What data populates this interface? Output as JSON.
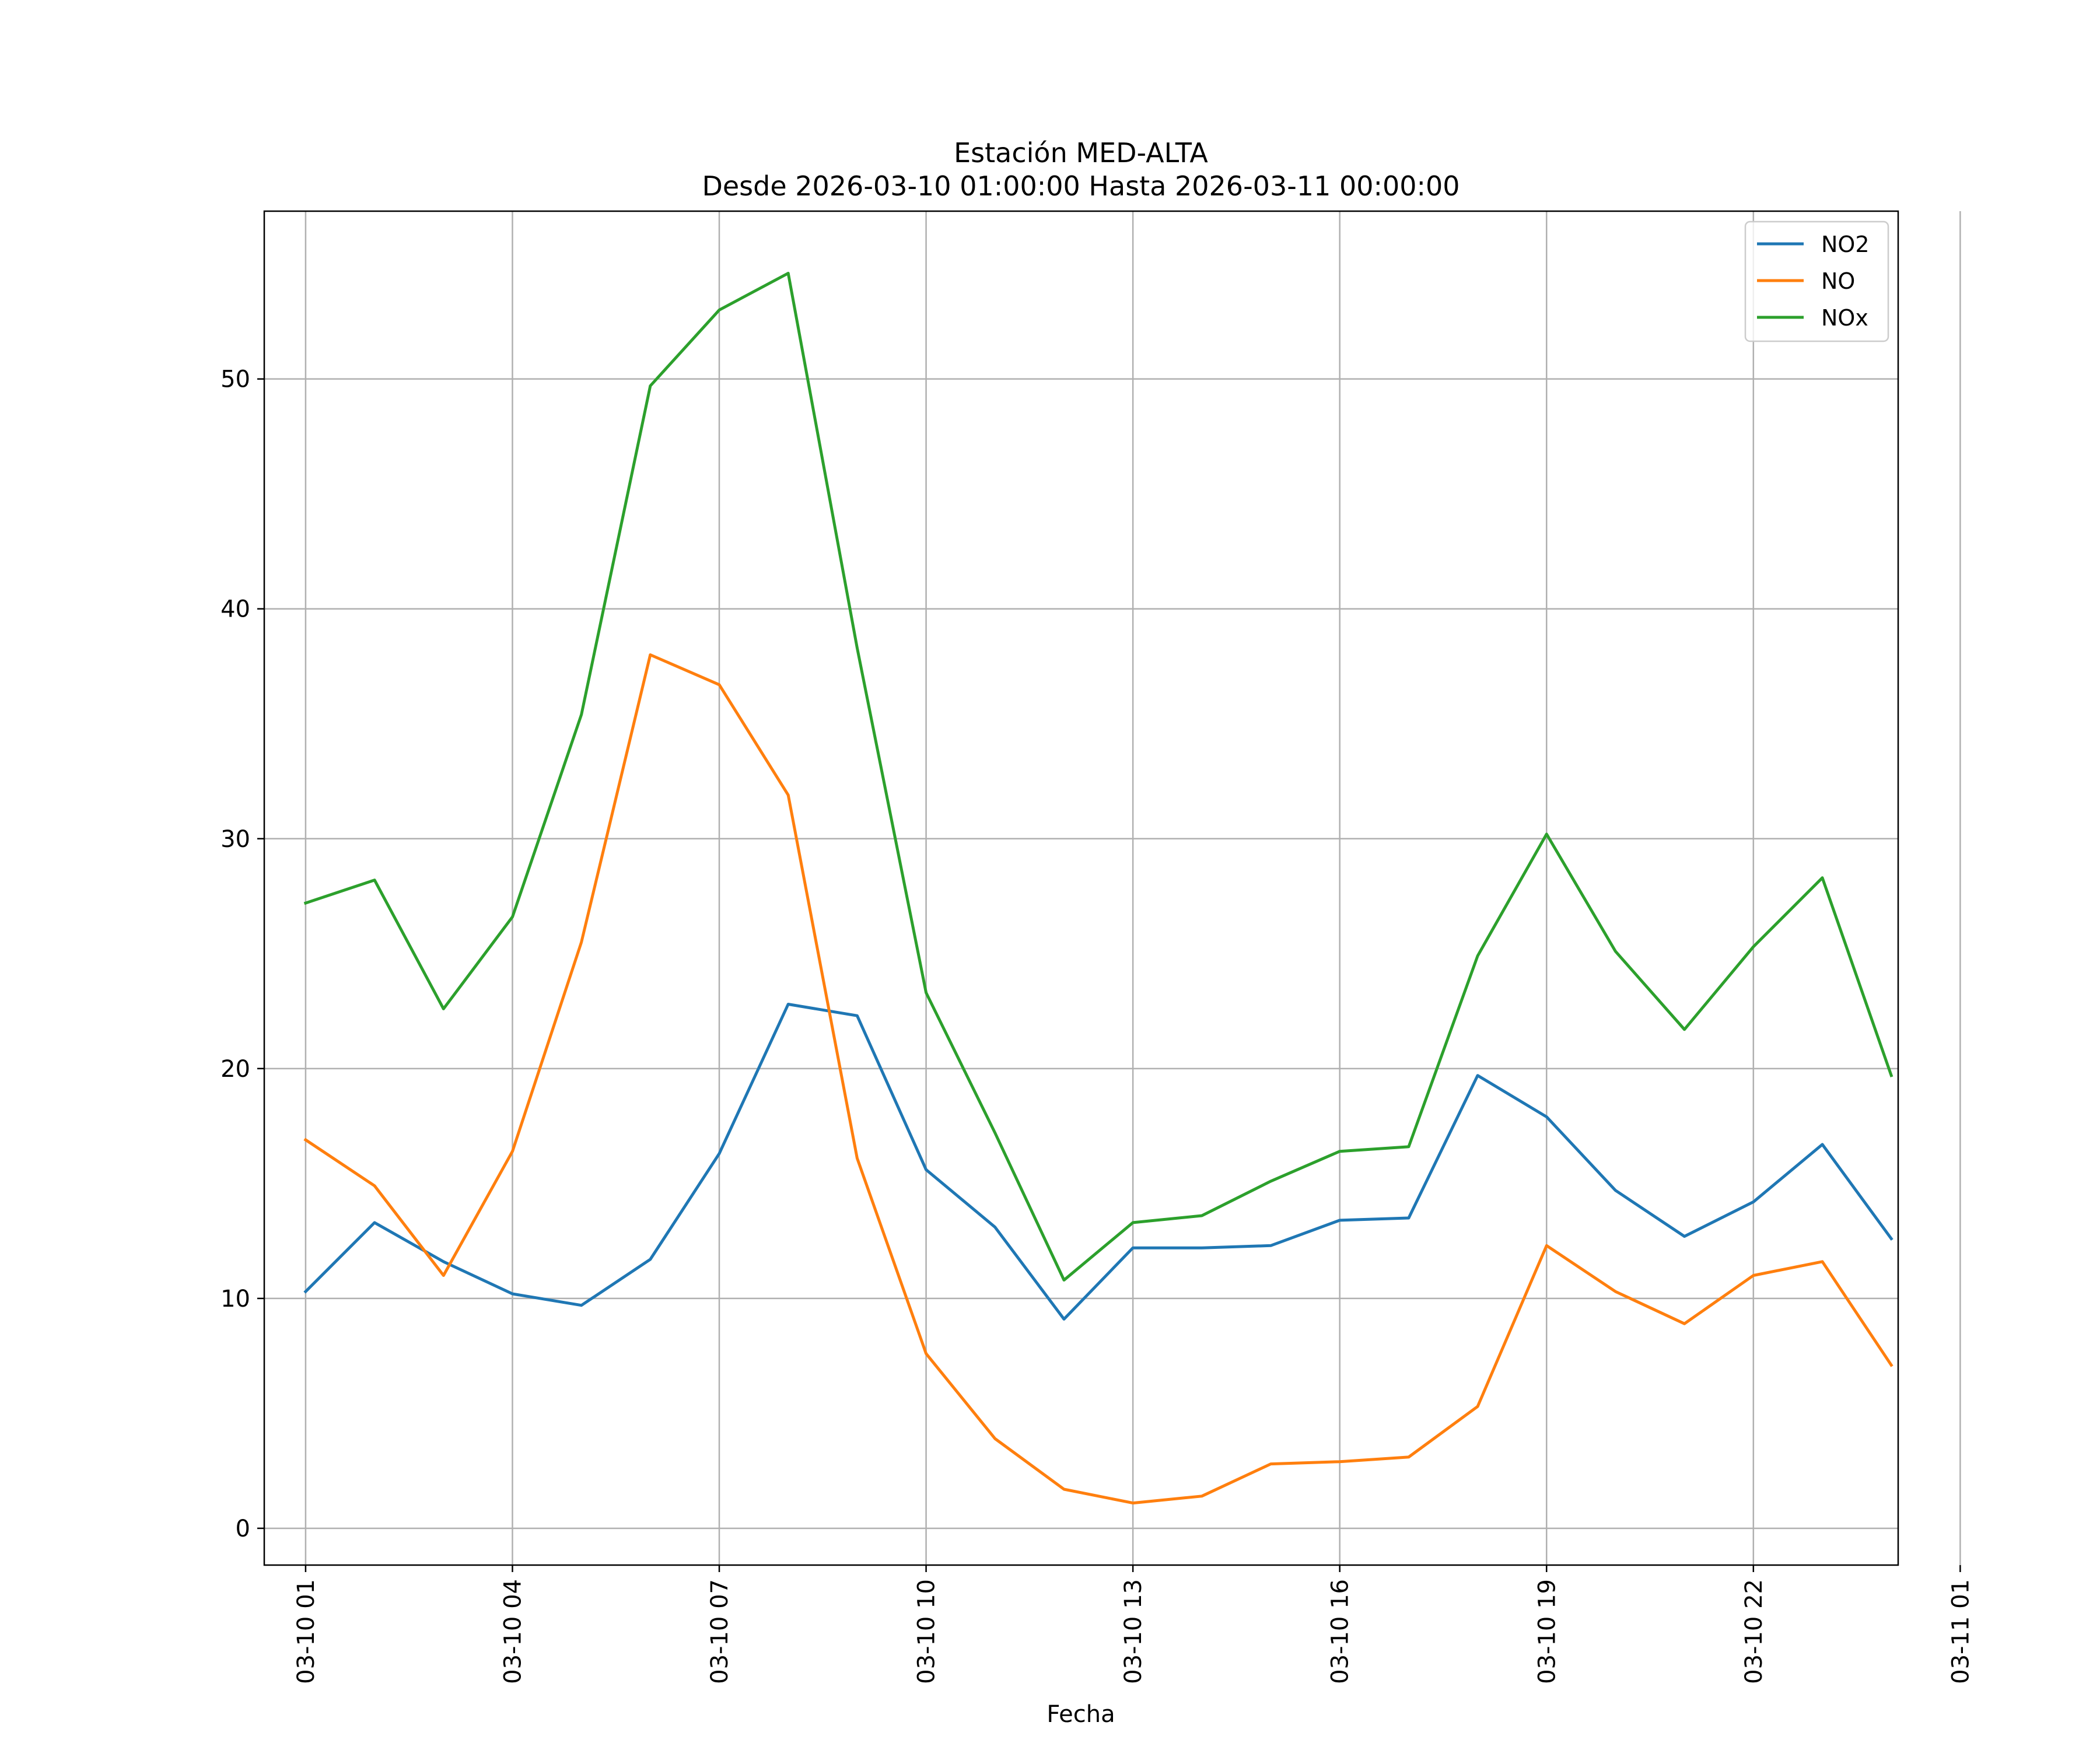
{
  "chart_data": {
    "type": "line",
    "title": "Estación MED-ALTA",
    "subtitle": "Desde 2026-03-10 01:00:00 Hasta 2026-03-11 00:00:00",
    "xlabel": "Fecha",
    "ylabel": "",
    "x": [
      "03-10 01",
      "03-10 02",
      "03-10 03",
      "03-10 04",
      "03-10 05",
      "03-10 06",
      "03-10 07",
      "03-10 08",
      "03-10 09",
      "03-10 10",
      "03-10 11",
      "03-10 12",
      "03-10 13",
      "03-10 14",
      "03-10 15",
      "03-10 16",
      "03-10 17",
      "03-10 18",
      "03-10 19",
      "03-10 20",
      "03-10 21",
      "03-10 22",
      "03-10 23",
      "03-11 00"
    ],
    "x_ticks": [
      "03-10 01",
      "03-10 04",
      "03-10 07",
      "03-10 10",
      "03-10 13",
      "03-10 16",
      "03-10 19",
      "03-10 22",
      "03-11 01"
    ],
    "x_range_hours": [
      0.4,
      24.1
    ],
    "y_ticks": [
      0,
      10,
      20,
      30,
      40,
      50
    ],
    "ylim": [
      -1.6,
      57.3
    ],
    "grid": true,
    "legend_position": "top-right",
    "series": [
      {
        "name": "NO2",
        "color": "#1f77b4",
        "values": [
          10.3,
          13.3,
          11.6,
          10.2,
          9.7,
          11.7,
          16.3,
          22.8,
          22.3,
          15.6,
          13.1,
          9.1,
          12.2,
          12.2,
          12.3,
          13.4,
          13.5,
          19.7,
          17.9,
          14.7,
          12.7,
          14.2,
          16.7,
          12.6
        ]
      },
      {
        "name": "NO",
        "color": "#ff7f0e",
        "values": [
          16.9,
          14.9,
          11.0,
          16.4,
          25.5,
          38.0,
          36.7,
          31.9,
          16.1,
          7.6,
          3.9,
          1.7,
          1.1,
          1.4,
          2.8,
          2.9,
          3.1,
          5.3,
          12.3,
          10.3,
          8.9,
          11.0,
          11.6,
          7.1
        ]
      },
      {
        "name": "NOx",
        "color": "#2ca02c",
        "values": [
          27.2,
          28.2,
          22.6,
          26.6,
          35.4,
          49.7,
          53.0,
          54.6,
          38.3,
          23.3,
          17.2,
          10.8,
          13.3,
          13.6,
          15.1,
          16.4,
          16.6,
          24.9,
          30.2,
          25.1,
          21.7,
          25.3,
          28.3,
          19.7
        ]
      }
    ]
  }
}
